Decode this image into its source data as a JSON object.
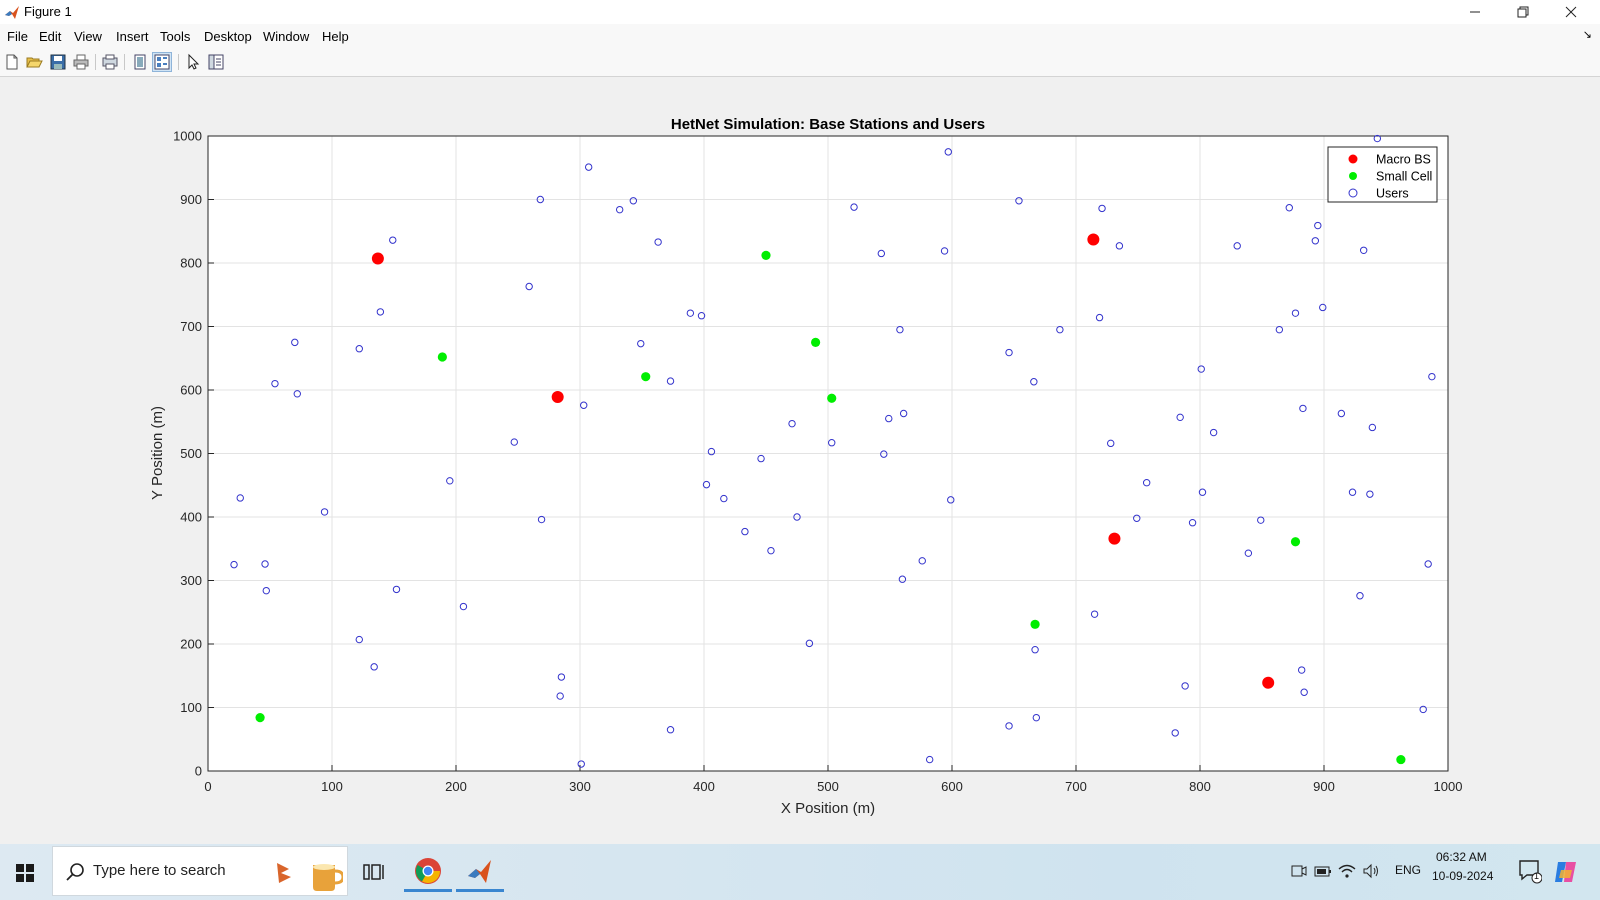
{
  "window": {
    "title": "Figure 1",
    "controls": [
      "minimize",
      "restore",
      "close"
    ]
  },
  "menu": [
    "File",
    "Edit",
    "View",
    "Insert",
    "Tools",
    "Desktop",
    "Window",
    "Help"
  ],
  "toolbar_icons": [
    "new-figure-icon",
    "open-icon",
    "save-icon",
    "print-icon",
    "link-plot-icon",
    "hide-plot-tools-icon",
    "show-plot-tools-icon",
    "edit-plot-icon",
    "dock-icon"
  ],
  "chart_data": {
    "type": "scatter",
    "title": "HetNet Simulation: Base Stations and Users",
    "xlabel": "X Position (m)",
    "ylabel": "Y Position (m)",
    "xlim": [
      0,
      1000
    ],
    "ylim": [
      0,
      1000
    ],
    "xticks": [
      0,
      100,
      200,
      300,
      400,
      500,
      600,
      700,
      800,
      900,
      1000
    ],
    "yticks": [
      0,
      100,
      200,
      300,
      400,
      500,
      600,
      700,
      800,
      900,
      1000
    ],
    "grid": true,
    "legend_position": "top-right",
    "series": [
      {
        "name": "Macro BS",
        "color": "#ff0000",
        "marker": "filled-circle-large",
        "points": [
          [
            137,
            807
          ],
          [
            282,
            589
          ],
          [
            714,
            837
          ],
          [
            731,
            366
          ],
          [
            855,
            139
          ]
        ]
      },
      {
        "name": "Small Cell",
        "color": "#00ee00",
        "marker": "filled-circle",
        "points": [
          [
            42,
            84
          ],
          [
            189,
            652
          ],
          [
            353,
            621
          ],
          [
            450,
            812
          ],
          [
            490,
            675
          ],
          [
            503,
            587
          ],
          [
            667,
            231
          ],
          [
            877,
            361
          ],
          [
            962,
            18
          ]
        ]
      },
      {
        "name": "Users",
        "color": "#3333cc",
        "marker": "open-circle",
        "points": [
          [
            21,
            325
          ],
          [
            26,
            430
          ],
          [
            46,
            326
          ],
          [
            47,
            284
          ],
          [
            54,
            610
          ],
          [
            70,
            675
          ],
          [
            72,
            594
          ],
          [
            94,
            408
          ],
          [
            122,
            665
          ],
          [
            122,
            207
          ],
          [
            134,
            164
          ],
          [
            139,
            723
          ],
          [
            149,
            836
          ],
          [
            152,
            286
          ],
          [
            195,
            457
          ],
          [
            206,
            259
          ],
          [
            247,
            518
          ],
          [
            259,
            763
          ],
          [
            268,
            900
          ],
          [
            269,
            396
          ],
          [
            285,
            148
          ],
          [
            284,
            118
          ],
          [
            301,
            11
          ],
          [
            303,
            576
          ],
          [
            307,
            951
          ],
          [
            332,
            884
          ],
          [
            343,
            898
          ],
          [
            349,
            673
          ],
          [
            363,
            833
          ],
          [
            373,
            614
          ],
          [
            373,
            65
          ],
          [
            389,
            721
          ],
          [
            398,
            717
          ],
          [
            402,
            451
          ],
          [
            406,
            503
          ],
          [
            416,
            429
          ],
          [
            433,
            377
          ],
          [
            446,
            492
          ],
          [
            454,
            347
          ],
          [
            471,
            547
          ],
          [
            475,
            400
          ],
          [
            485,
            201
          ],
          [
            503,
            517
          ],
          [
            521,
            888
          ],
          [
            543,
            815
          ],
          [
            545,
            499
          ],
          [
            549,
            555
          ],
          [
            558,
            695
          ],
          [
            561,
            563
          ],
          [
            560,
            302
          ],
          [
            576,
            331
          ],
          [
            582,
            18
          ],
          [
            594,
            819
          ],
          [
            597,
            975
          ],
          [
            599,
            427
          ],
          [
            646,
            659
          ],
          [
            646,
            71
          ],
          [
            654,
            898
          ],
          [
            666,
            613
          ],
          [
            667,
            191
          ],
          [
            668,
            84
          ],
          [
            687,
            695
          ],
          [
            715,
            247
          ],
          [
            719,
            714
          ],
          [
            721,
            886
          ],
          [
            728,
            516
          ],
          [
            735,
            827
          ],
          [
            749,
            398
          ],
          [
            757,
            454
          ],
          [
            780,
            60
          ],
          [
            784,
            557
          ],
          [
            788,
            134
          ],
          [
            794,
            391
          ],
          [
            801,
            633
          ],
          [
            802,
            439
          ],
          [
            811,
            533
          ],
          [
            830,
            827
          ],
          [
            839,
            343
          ],
          [
            849,
            395
          ],
          [
            864,
            695
          ],
          [
            872,
            887
          ],
          [
            877,
            721
          ],
          [
            882,
            159
          ],
          [
            883,
            571
          ],
          [
            884,
            124
          ],
          [
            893,
            835
          ],
          [
            895,
            859
          ],
          [
            899,
            730
          ],
          [
            914,
            563
          ],
          [
            923,
            439
          ],
          [
            929,
            276
          ],
          [
            932,
            820
          ],
          [
            937,
            436
          ],
          [
            939,
            541
          ],
          [
            943,
            996
          ],
          [
            980,
            97
          ],
          [
            984,
            326
          ],
          [
            987,
            621
          ]
        ]
      }
    ]
  },
  "taskbar": {
    "search_placeholder": "Type here to search",
    "language": "ENG",
    "time": "06:32 AM",
    "date": "10-09-2024",
    "notification_count": "1",
    "pinned": [
      "task-view-icon",
      "chrome-icon",
      "matlab-icon"
    ]
  }
}
